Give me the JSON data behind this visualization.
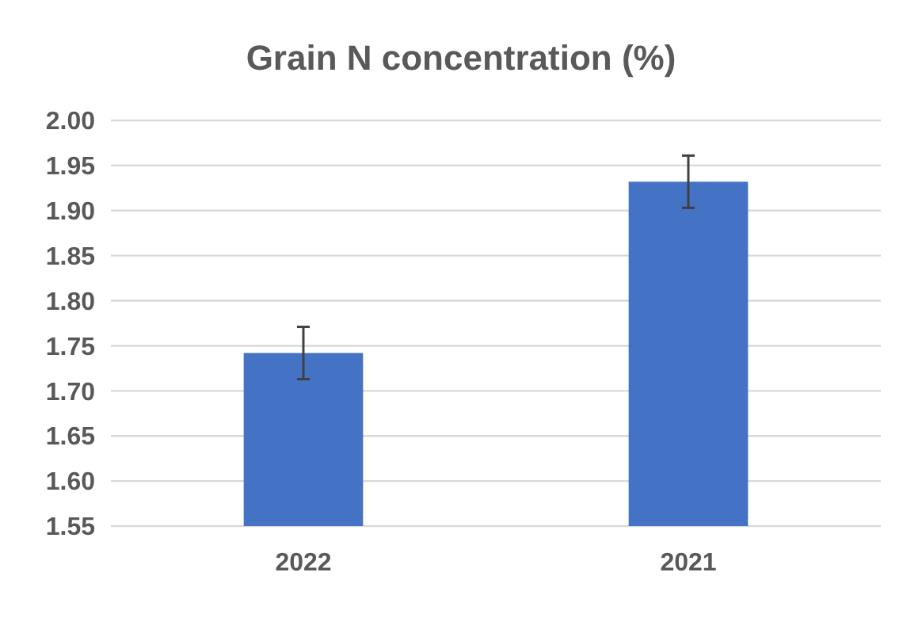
{
  "chart_data": {
    "type": "bar",
    "title": "Grain N concentration (%)",
    "categories": [
      "2022",
      "2021"
    ],
    "values": [
      1.742,
      1.932
    ],
    "errors": [
      0.029,
      0.029
    ],
    "color": "#4472c4",
    "ylim": [
      1.55,
      2.0
    ],
    "yticks": [
      1.55,
      {
        "value": 1.6,
        "label": "1.60"
      },
      1.65,
      {
        "value": 1.7,
        "label": "1.70"
      },
      1.75,
      {
        "value": 1.8,
        "label": "1.80"
      },
      1.85,
      {
        "value": 1.9,
        "label": "1.90"
      },
      1.95,
      {
        "value": 2,
        "label": "2.00"
      }
    ],
    "grid": "y"
  }
}
